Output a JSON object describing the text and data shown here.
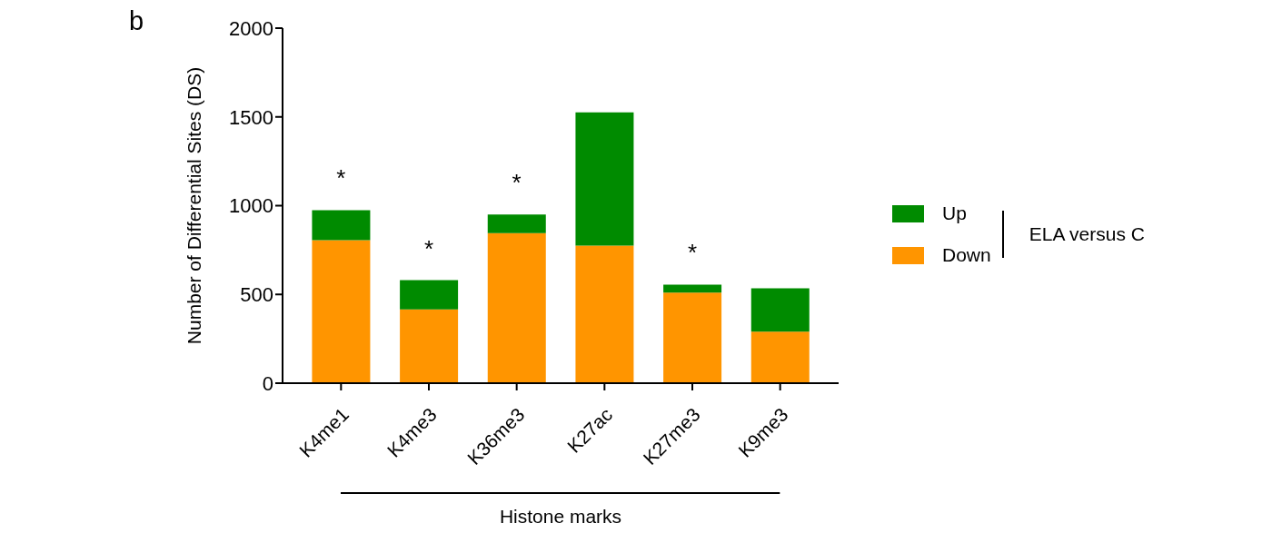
{
  "chart_data": {
    "type": "bar",
    "stacked": true,
    "categories": [
      "K4me1",
      "K4me3",
      "K36me3",
      "K27ac",
      "K27me3",
      "K9me3"
    ],
    "series": [
      {
        "name": "Down",
        "color": "#ff9500",
        "values": [
          805,
          415,
          845,
          775,
          510,
          290
        ]
      },
      {
        "name": "Up",
        "color": "#008b00",
        "values": [
          170,
          165,
          105,
          750,
          45,
          245
        ]
      }
    ],
    "ylim": [
      0,
      2000
    ],
    "yticks": [
      0,
      500,
      1000,
      1500,
      2000
    ],
    "ylabel": "Number of Differential Sites (DS)",
    "xlabel": "Histone marks",
    "legend": "right",
    "legend_title": "ELA versus C",
    "annotations": [
      "b",
      "*",
      "*",
      "*",
      "*"
    ]
  }
}
